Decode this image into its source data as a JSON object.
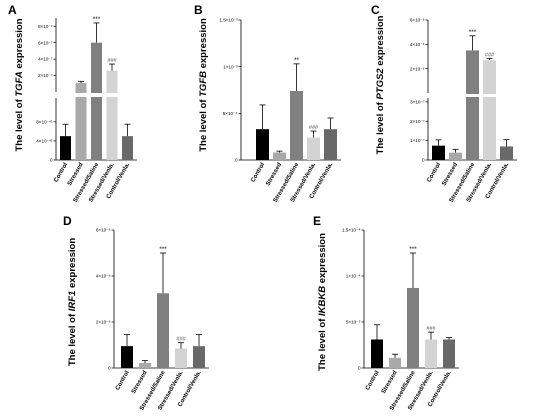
{
  "figure": {
    "categories": [
      "Control",
      "Stressed",
      "Stressed/Saline",
      "Stressed/Venla.",
      "Control/Venla."
    ],
    "bar_colors": [
      "#000000",
      "#a9a9a9",
      "#808080",
      "#d3d3d3",
      "#696969"
    ]
  },
  "chart_data": [
    {
      "panel": "A",
      "type": "bar",
      "axis_break": true,
      "ylabel_prefix": "The level of ",
      "ylabel_gene": "TGFA",
      "ylabel_suffix": " expression",
      "categories": [
        "Control",
        "Stressed",
        "Stressed/Saline",
        "Stressed/Venla.",
        "Control/Venla."
      ],
      "values": [
        5e-41,
        1.1e-07,
        6e-07,
        2.6e-07,
        5e-41
      ],
      "errors": [
        2.5e-41,
        2e-08,
        2.4e-07,
        8e-08,
        2.5e-41
      ],
      "segments": [
        {
          "ylim": [
            0,
            1.3e-40
          ],
          "ticks": [
            0,
            4e-41,
            8e-41
          ],
          "tick_labels": [
            "0",
            "4×10⁻⁴¹",
            "8×10⁻⁴¹"
          ]
        },
        {
          "ylim": [
            0,
            9e-07
          ],
          "ticks": [
            2e-07,
            4e-07,
            6e-07,
            8e-07,
            1e-06
          ],
          "tick_labels": [
            "2×10⁻⁷",
            "4×10⁻⁷",
            "6×10⁻⁷",
            "8×10⁻⁷",
            "1×10⁻⁶"
          ]
        }
      ],
      "significance": [
        "",
        "",
        "***",
        "###",
        ""
      ]
    },
    {
      "panel": "B",
      "type": "bar",
      "axis_break": false,
      "ylabel_prefix": "The level of ",
      "ylabel_gene": "TGFB",
      "ylabel_suffix": " expression",
      "categories": [
        "Control",
        "Stressed",
        "Stressed/Saline",
        "Stressed/Venla.",
        "Control/Venla."
      ],
      "values": [
        0.00033,
        8e-05,
        0.00074,
        0.00024,
        0.00033
      ],
      "errors": [
        0.00026,
        1.5e-05,
        0.00029,
        7e-05,
        0.00012
      ],
      "ylim": [
        0,
        0.0015
      ],
      "ticks": [
        0,
        0.0005,
        0.001,
        0.0015
      ],
      "tick_labels": [
        "0",
        "5×10⁻⁴",
        "1×10⁻³",
        "1.5×10⁻³"
      ],
      "significance": [
        "",
        "",
        "**",
        "###",
        ""
      ]
    },
    {
      "panel": "C",
      "type": "bar",
      "axis_break": true,
      "ylabel_prefix": "The level of ",
      "ylabel_gene": "PTGS2",
      "ylabel_suffix": " expression",
      "categories": [
        "Control",
        "Stressed",
        "Stressed/Saline",
        "Stressed/Venla.",
        "Control/Venla."
      ],
      "values": [
        7.4e-08,
        3.8e-08,
        3.5e-06,
        2.7e-06,
        7e-08
      ],
      "errors": [
        3e-08,
        1.7e-08,
        1.2e-06,
        1.5e-07,
        3.5e-08
      ],
      "segments": [
        {
          "ylim": [
            0,
            3.2e-07
          ],
          "ticks": [
            0,
            1e-07,
            2e-07,
            3e-07
          ],
          "tick_labels": [
            "0",
            "1×10⁻⁷",
            "2×10⁻⁷",
            "3×10⁻⁷"
          ]
        },
        {
          "ylim": [
            0,
            6e-06
          ],
          "ticks": [
            2e-06,
            4e-06,
            6e-06
          ],
          "tick_labels": [
            "2×10⁻⁶",
            "4×10⁻⁶",
            "6×10⁻⁶"
          ]
        }
      ],
      "significance": [
        "",
        "",
        "***",
        "###",
        ""
      ]
    },
    {
      "panel": "D",
      "type": "bar",
      "axis_break": false,
      "ylabel_prefix": "The level of ",
      "ylabel_gene": "IRF1",
      "ylabel_suffix": " expression",
      "categories": [
        "Control",
        "Stressed",
        "Stressed/Saline",
        "Stressed/Venla.",
        "Control/Venla."
      ],
      "values": [
        9.5e-07,
        2.2e-07,
        3.25e-06,
        8.5e-07,
        9.5e-07
      ],
      "errors": [
        5e-07,
        1e-07,
        1.75e-06,
        2.5e-07,
        5e-07
      ],
      "ylim": [
        0,
        6e-06
      ],
      "ticks": [
        0,
        2e-06,
        4e-06,
        6e-06
      ],
      "tick_labels": [
        "0",
        "2×10⁻⁶",
        "4×10⁻⁶",
        "6×10⁻⁶"
      ],
      "significance": [
        "",
        "",
        "***",
        "###",
        ""
      ]
    },
    {
      "panel": "E",
      "type": "bar",
      "axis_break": false,
      "ylabel_prefix": "The level of ",
      "ylabel_gene": "IKBKB",
      "ylabel_suffix": " expression",
      "categories": [
        "Control",
        "Stressed",
        "Stressed/Saline",
        "Stressed/Venla.",
        "Control/Venla."
      ],
      "values": [
        3.1e-05,
        1.1e-05,
        8.7e-05,
        3.1e-05,
        3.1e-05
      ],
      "errors": [
        1.6e-05,
        4e-06,
        3.8e-05,
        8e-06,
        2e-06
      ],
      "ylim": [
        0,
        0.00015
      ],
      "ticks": [
        0,
        5e-05,
        0.0001,
        0.00015
      ],
      "tick_labels": [
        "0",
        "5×10⁻⁵",
        "1×10⁻⁴",
        "1.5×10⁻⁴"
      ],
      "significance": [
        "",
        "",
        "***",
        "###",
        ""
      ]
    }
  ]
}
